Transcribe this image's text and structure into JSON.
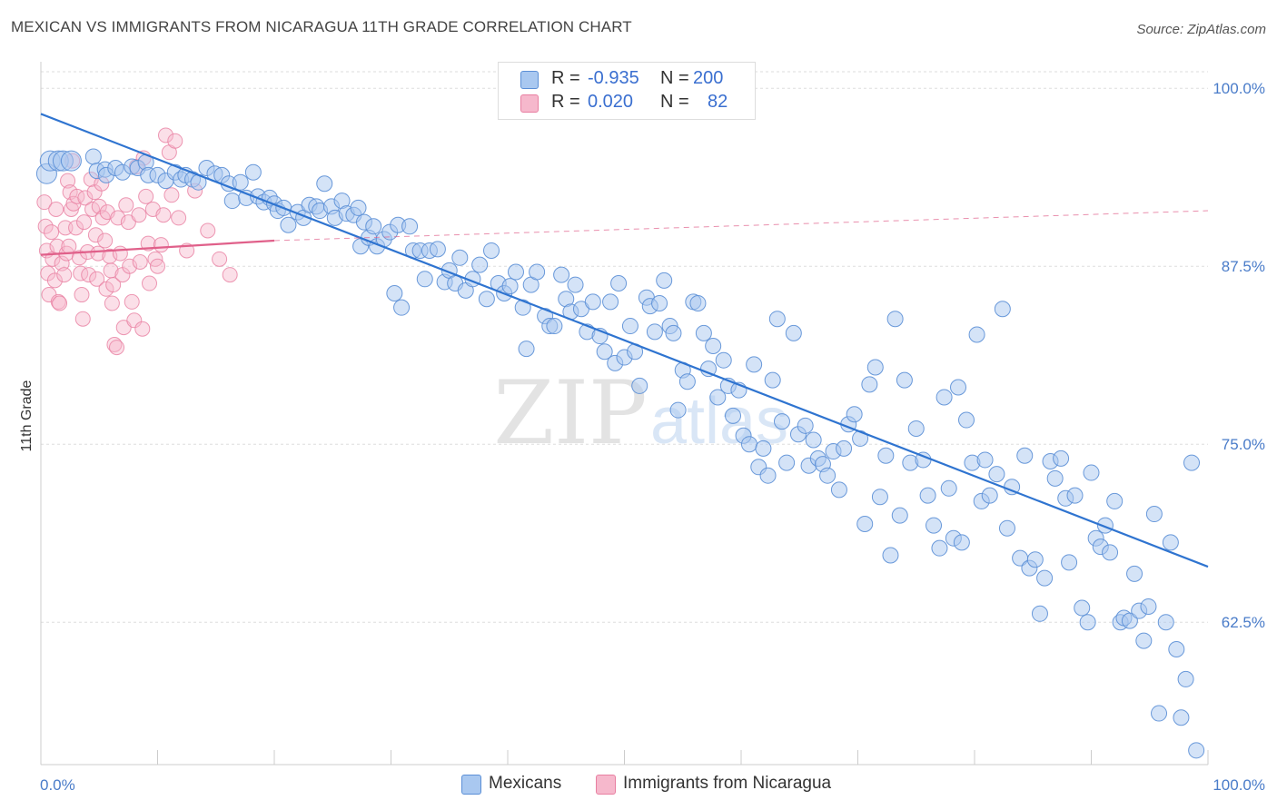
{
  "title": "MEXICAN VS IMMIGRANTS FROM NICARAGUA 11TH GRADE CORRELATION CHART",
  "source": "Source: ZipAtlas.com",
  "watermark": {
    "zip": "ZIP",
    "atlas": "atlas"
  },
  "legend": {
    "series": [
      {
        "r_label": "R =",
        "r_value": "-0.935",
        "n_label": "N =",
        "n_value": "200"
      },
      {
        "r_label": "R =",
        "r_value": "0.020",
        "n_label": "N =",
        "n_value": "82"
      }
    ]
  },
  "bottom_legend": [
    "Mexicans",
    "Immigrants from Nicaragua"
  ],
  "colors": {
    "blue_fill": "#a9c8f0",
    "blue_stroke": "#5b8fd6",
    "blue_line": "#2f74d0",
    "pink_fill": "#f6b8cc",
    "pink_stroke": "#e87fa1",
    "pink_line": "#e0608a",
    "axis_text": "#4a7cc9",
    "grid": "#dddddd"
  },
  "chart_data": {
    "type": "scatter",
    "title": "MEXICAN VS IMMIGRANTS FROM NICARAGUA 11TH GRADE CORRELATION CHART",
    "xlabel": "",
    "ylabel": "11th Grade",
    "xlim": [
      0,
      100
    ],
    "ylim": [
      52.5,
      102.5
    ],
    "x_tick_labels": [
      "0.0%",
      "100.0%"
    ],
    "y_ticks": [
      62.5,
      75.0,
      87.5,
      100.0
    ],
    "y_tick_labels": [
      "62.5%",
      "75.0%",
      "87.5%",
      "100.0%"
    ],
    "grid": true,
    "series": [
      {
        "name": "Mexicans",
        "R": -0.935,
        "N": 200,
        "trend": {
          "x": [
            0,
            100
          ],
          "y": [
            98.2,
            66.4
          ]
        },
        "points": [
          [
            0.5,
            94.0
          ],
          [
            0.8,
            94.9
          ],
          [
            1.5,
            94.9
          ],
          [
            1.9,
            94.9
          ],
          [
            2.6,
            94.9
          ],
          [
            4.5,
            95.2
          ],
          [
            4.8,
            94.2
          ],
          [
            5.5,
            94.3
          ],
          [
            5.6,
            93.9
          ],
          [
            6.4,
            94.4
          ],
          [
            7.0,
            94.1
          ],
          [
            7.8,
            94.5
          ],
          [
            8.3,
            94.4
          ],
          [
            9.0,
            94.8
          ],
          [
            9.2,
            93.9
          ],
          [
            10.0,
            93.9
          ],
          [
            10.7,
            93.5
          ],
          [
            11.5,
            94.1
          ],
          [
            12.0,
            93.6
          ],
          [
            12.4,
            93.9
          ],
          [
            13.0,
            93.6
          ],
          [
            13.5,
            93.4
          ],
          [
            14.2,
            94.4
          ],
          [
            14.9,
            94.0
          ],
          [
            15.5,
            93.9
          ],
          [
            16.1,
            93.3
          ],
          [
            16.4,
            92.1
          ],
          [
            17.1,
            93.4
          ],
          [
            17.6,
            92.3
          ],
          [
            18.2,
            94.1
          ],
          [
            18.6,
            92.4
          ],
          [
            19.1,
            92.0
          ],
          [
            19.6,
            92.3
          ],
          [
            20.0,
            91.9
          ],
          [
            20.3,
            91.4
          ],
          [
            20.8,
            91.6
          ],
          [
            21.2,
            90.4
          ],
          [
            22.0,
            91.3
          ],
          [
            22.5,
            90.9
          ],
          [
            23.0,
            91.8
          ],
          [
            23.6,
            91.7
          ],
          [
            23.9,
            91.4
          ],
          [
            24.3,
            93.3
          ],
          [
            24.9,
            91.7
          ],
          [
            25.2,
            90.9
          ],
          [
            25.8,
            92.1
          ],
          [
            26.2,
            91.2
          ],
          [
            26.8,
            91.1
          ],
          [
            27.2,
            91.6
          ],
          [
            27.4,
            88.9
          ],
          [
            27.7,
            90.6
          ],
          [
            28.1,
            89.5
          ],
          [
            28.5,
            90.3
          ],
          [
            28.8,
            88.9
          ],
          [
            29.4,
            89.4
          ],
          [
            29.9,
            89.9
          ],
          [
            30.3,
            85.6
          ],
          [
            30.6,
            90.4
          ],
          [
            30.9,
            84.6
          ],
          [
            31.6,
            90.3
          ],
          [
            31.9,
            88.6
          ],
          [
            32.5,
            88.6
          ],
          [
            32.9,
            86.6
          ],
          [
            33.3,
            88.6
          ],
          [
            34.0,
            88.7
          ],
          [
            34.6,
            86.4
          ],
          [
            35.0,
            87.2
          ],
          [
            35.5,
            86.3
          ],
          [
            35.9,
            88.1
          ],
          [
            36.4,
            85.8
          ],
          [
            37.0,
            86.6
          ],
          [
            37.6,
            87.6
          ],
          [
            38.2,
            85.2
          ],
          [
            38.6,
            88.6
          ],
          [
            39.2,
            86.3
          ],
          [
            39.7,
            85.6
          ],
          [
            40.2,
            86.1
          ],
          [
            40.7,
            87.1
          ],
          [
            41.3,
            84.6
          ],
          [
            41.6,
            81.7
          ],
          [
            42.0,
            86.2
          ],
          [
            42.5,
            87.1
          ],
          [
            43.2,
            84.0
          ],
          [
            43.6,
            83.3
          ],
          [
            44.0,
            83.3
          ],
          [
            44.6,
            86.9
          ],
          [
            45.0,
            85.2
          ],
          [
            45.4,
            84.3
          ],
          [
            45.8,
            86.2
          ],
          [
            46.3,
            84.5
          ],
          [
            46.8,
            82.9
          ],
          [
            47.3,
            85.0
          ],
          [
            47.9,
            82.6
          ],
          [
            48.3,
            81.5
          ],
          [
            48.8,
            85.0
          ],
          [
            49.2,
            80.7
          ],
          [
            49.5,
            86.3
          ],
          [
            50.0,
            81.1
          ],
          [
            50.5,
            83.3
          ],
          [
            50.9,
            81.5
          ],
          [
            51.3,
            79.1
          ],
          [
            51.9,
            85.3
          ],
          [
            52.2,
            84.7
          ],
          [
            52.6,
            82.9
          ],
          [
            53.0,
            84.9
          ],
          [
            53.4,
            86.5
          ],
          [
            53.9,
            83.3
          ],
          [
            54.2,
            82.8
          ],
          [
            54.6,
            77.4
          ],
          [
            55.0,
            80.2
          ],
          [
            55.4,
            79.4
          ],
          [
            55.9,
            85.0
          ],
          [
            56.3,
            84.9
          ],
          [
            56.8,
            82.8
          ],
          [
            57.2,
            80.3
          ],
          [
            57.6,
            81.9
          ],
          [
            58.0,
            78.3
          ],
          [
            58.5,
            80.9
          ],
          [
            58.9,
            79.1
          ],
          [
            59.3,
            77.0
          ],
          [
            59.8,
            78.8
          ],
          [
            60.2,
            75.6
          ],
          [
            60.7,
            75.0
          ],
          [
            61.1,
            80.6
          ],
          [
            61.5,
            73.4
          ],
          [
            61.9,
            74.7
          ],
          [
            62.3,
            72.8
          ],
          [
            62.7,
            79.5
          ],
          [
            63.1,
            83.8
          ],
          [
            63.5,
            76.6
          ],
          [
            63.9,
            73.7
          ],
          [
            64.5,
            82.8
          ],
          [
            64.9,
            75.7
          ],
          [
            65.5,
            76.3
          ],
          [
            65.8,
            73.5
          ],
          [
            66.2,
            75.3
          ],
          [
            66.6,
            74.0
          ],
          [
            67.0,
            73.6
          ],
          [
            67.4,
            72.8
          ],
          [
            67.9,
            74.5
          ],
          [
            68.4,
            71.8
          ],
          [
            68.8,
            74.7
          ],
          [
            69.2,
            76.4
          ],
          [
            69.7,
            77.1
          ],
          [
            70.2,
            75.4
          ],
          [
            70.6,
            69.4
          ],
          [
            71.0,
            79.2
          ],
          [
            71.5,
            80.4
          ],
          [
            71.9,
            71.3
          ],
          [
            72.4,
            74.2
          ],
          [
            72.8,
            67.2
          ],
          [
            73.2,
            83.8
          ],
          [
            73.6,
            70.0
          ],
          [
            74.0,
            79.5
          ],
          [
            74.5,
            73.7
          ],
          [
            75.0,
            76.1
          ],
          [
            75.6,
            73.9
          ],
          [
            76.0,
            71.4
          ],
          [
            76.5,
            69.3
          ],
          [
            77.0,
            67.7
          ],
          [
            77.4,
            78.3
          ],
          [
            77.8,
            71.9
          ],
          [
            78.2,
            68.4
          ],
          [
            78.6,
            79.0
          ],
          [
            78.9,
            68.1
          ],
          [
            79.3,
            76.7
          ],
          [
            79.8,
            73.7
          ],
          [
            80.2,
            82.7
          ],
          [
            80.6,
            71.0
          ],
          [
            80.9,
            73.9
          ],
          [
            81.3,
            71.4
          ],
          [
            81.9,
            72.9
          ],
          [
            82.4,
            84.5
          ],
          [
            82.8,
            69.1
          ],
          [
            83.2,
            72.0
          ],
          [
            83.9,
            67.0
          ],
          [
            84.3,
            74.2
          ],
          [
            84.7,
            66.3
          ],
          [
            85.2,
            66.9
          ],
          [
            85.6,
            63.1
          ],
          [
            86.0,
            65.6
          ],
          [
            86.5,
            73.8
          ],
          [
            86.9,
            72.6
          ],
          [
            87.4,
            74.0
          ],
          [
            87.8,
            71.2
          ],
          [
            88.1,
            66.7
          ],
          [
            88.6,
            71.4
          ],
          [
            89.2,
            63.5
          ],
          [
            89.7,
            62.5
          ],
          [
            90.0,
            73.0
          ],
          [
            90.4,
            68.4
          ],
          [
            90.8,
            67.8
          ],
          [
            91.2,
            69.3
          ],
          [
            91.6,
            67.4
          ],
          [
            92.0,
            71.0
          ],
          [
            92.5,
            62.5
          ],
          [
            92.8,
            62.8
          ],
          [
            93.3,
            62.6
          ],
          [
            93.7,
            65.9
          ],
          [
            94.1,
            63.3
          ],
          [
            94.5,
            61.2
          ],
          [
            94.9,
            63.6
          ],
          [
            95.4,
            70.1
          ],
          [
            95.8,
            56.1
          ],
          [
            96.4,
            62.5
          ],
          [
            96.8,
            68.1
          ],
          [
            97.3,
            60.6
          ],
          [
            97.7,
            55.8
          ],
          [
            98.1,
            58.5
          ],
          [
            98.6,
            73.7
          ],
          [
            99.0,
            53.5
          ]
        ]
      },
      {
        "name": "Immigrants from Nicaragua",
        "R": 0.02,
        "N": 82,
        "trend": {
          "x": [
            0,
            20
          ],
          "y": [
            88.3,
            89.3
          ],
          "x_extended": [
            20,
            100
          ],
          "y_extended": [
            89.3,
            91.4
          ]
        },
        "points": [
          [
            0.3,
            92.0
          ],
          [
            0.4,
            90.3
          ],
          [
            0.5,
            88.6
          ],
          [
            0.6,
            87.0
          ],
          [
            0.7,
            85.5
          ],
          [
            0.9,
            89.9
          ],
          [
            1.0,
            88.0
          ],
          [
            1.2,
            86.5
          ],
          [
            1.3,
            91.5
          ],
          [
            1.4,
            88.9
          ],
          [
            1.5,
            85.0
          ],
          [
            1.6,
            84.9
          ],
          [
            1.8,
            87.7
          ],
          [
            2.0,
            86.9
          ],
          [
            2.1,
            90.2
          ],
          [
            2.2,
            88.4
          ],
          [
            2.3,
            93.5
          ],
          [
            2.4,
            88.9
          ],
          [
            2.5,
            92.7
          ],
          [
            2.6,
            91.5
          ],
          [
            2.7,
            94.9
          ],
          [
            2.8,
            91.9
          ],
          [
            3.0,
            90.2
          ],
          [
            3.1,
            92.4
          ],
          [
            3.3,
            88.1
          ],
          [
            3.4,
            87.0
          ],
          [
            3.5,
            85.5
          ],
          [
            3.6,
            83.8
          ],
          [
            3.7,
            90.6
          ],
          [
            3.8,
            92.3
          ],
          [
            4.0,
            88.5
          ],
          [
            4.1,
            86.9
          ],
          [
            4.3,
            93.6
          ],
          [
            4.4,
            91.5
          ],
          [
            4.6,
            92.7
          ],
          [
            4.7,
            89.7
          ],
          [
            4.8,
            86.6
          ],
          [
            4.9,
            88.4
          ],
          [
            5.0,
            91.7
          ],
          [
            5.2,
            93.3
          ],
          [
            5.3,
            90.9
          ],
          [
            5.5,
            89.3
          ],
          [
            5.6,
            85.9
          ],
          [
            5.7,
            91.3
          ],
          [
            5.9,
            88.2
          ],
          [
            6.0,
            87.2
          ],
          [
            6.1,
            84.9
          ],
          [
            6.2,
            86.2
          ],
          [
            6.3,
            82.0
          ],
          [
            6.5,
            81.8
          ],
          [
            6.6,
            90.9
          ],
          [
            6.8,
            88.4
          ],
          [
            7.0,
            86.9
          ],
          [
            7.1,
            83.2
          ],
          [
            7.3,
            91.8
          ],
          [
            7.5,
            90.6
          ],
          [
            7.6,
            87.5
          ],
          [
            7.8,
            85.0
          ],
          [
            8.0,
            83.7
          ],
          [
            8.2,
            94.5
          ],
          [
            8.4,
            91.1
          ],
          [
            8.5,
            87.8
          ],
          [
            8.7,
            83.1
          ],
          [
            8.8,
            95.1
          ],
          [
            9.0,
            92.4
          ],
          [
            9.2,
            89.1
          ],
          [
            9.3,
            86.3
          ],
          [
            9.6,
            91.5
          ],
          [
            9.8,
            88.0
          ],
          [
            10.0,
            87.5
          ],
          [
            10.3,
            89.0
          ],
          [
            10.5,
            91.1
          ],
          [
            10.7,
            96.7
          ],
          [
            11.0,
            95.5
          ],
          [
            11.2,
            92.5
          ],
          [
            11.5,
            96.3
          ],
          [
            11.8,
            90.9
          ],
          [
            12.5,
            88.6
          ],
          [
            13.2,
            92.8
          ],
          [
            14.3,
            90.0
          ],
          [
            15.3,
            88.0
          ],
          [
            16.2,
            86.9
          ]
        ]
      }
    ]
  }
}
